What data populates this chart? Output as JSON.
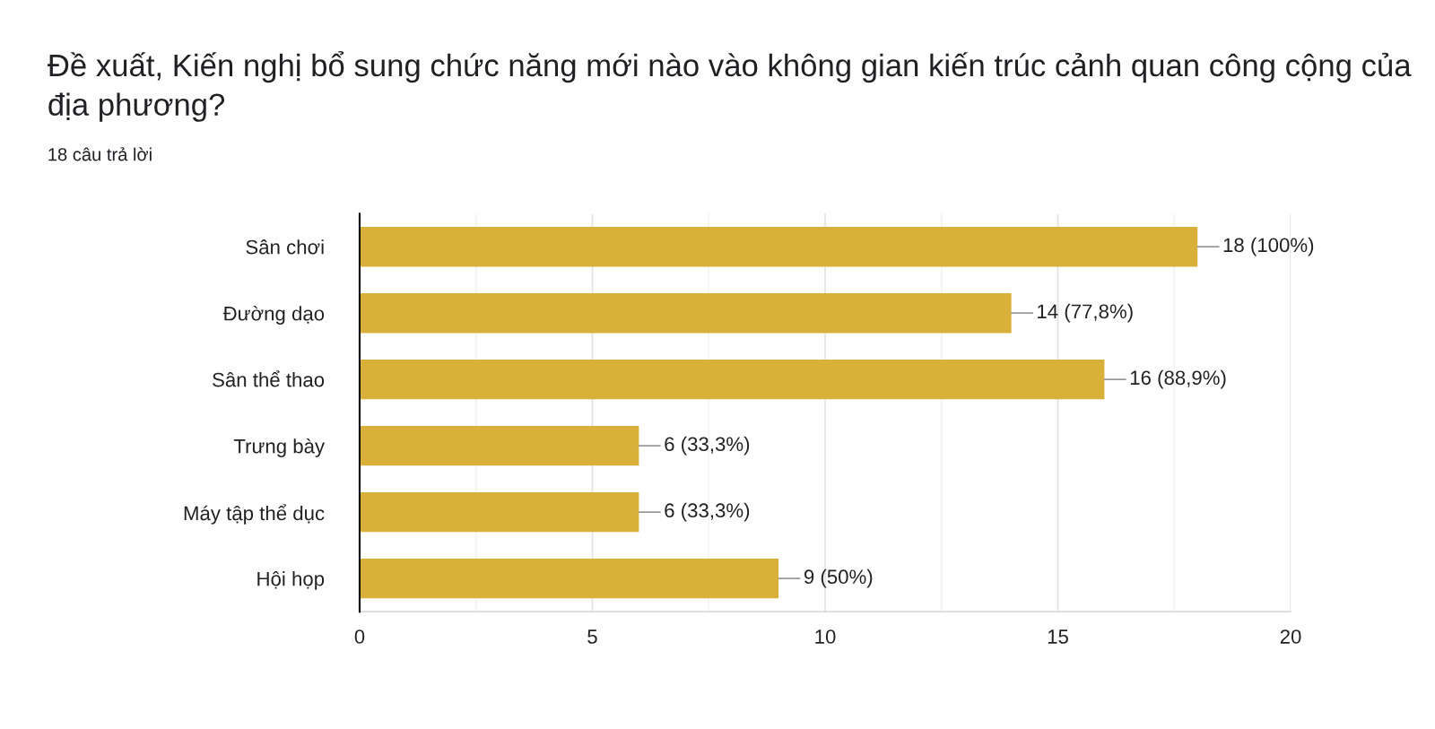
{
  "chart_data": {
    "type": "bar",
    "orientation": "horizontal",
    "title": "Đề xuất, Kiến nghị bổ sung chức năng mới nào vào không gian kiến trúc cảnh quan công cộng của địa phương?",
    "subtitle": "18 câu trả lời",
    "categories": [
      "Sân chơi",
      "Đường dạo",
      "Sân thể thao",
      "Trưng bày",
      "Máy tập thể dục",
      "Hội họp"
    ],
    "values": [
      18,
      14,
      16,
      6,
      6,
      9
    ],
    "value_labels": [
      "18 (100%)",
      "14 (77,8%)",
      "16 (88,9%)",
      "6 (33,3%)",
      "6 (33,3%)",
      "9 (50%)"
    ],
    "color": "#d9b13a",
    "xlim": [
      0,
      20
    ],
    "xticks": [
      0,
      {
        "value": 2.5,
        "label": null
      },
      5,
      {
        "value": 7.5,
        "label": null
      },
      10,
      {
        "value": 12.5,
        "label": null
      },
      15,
      {
        "value": 17.5,
        "label": null
      },
      20
    ],
    "grid": "x"
  }
}
